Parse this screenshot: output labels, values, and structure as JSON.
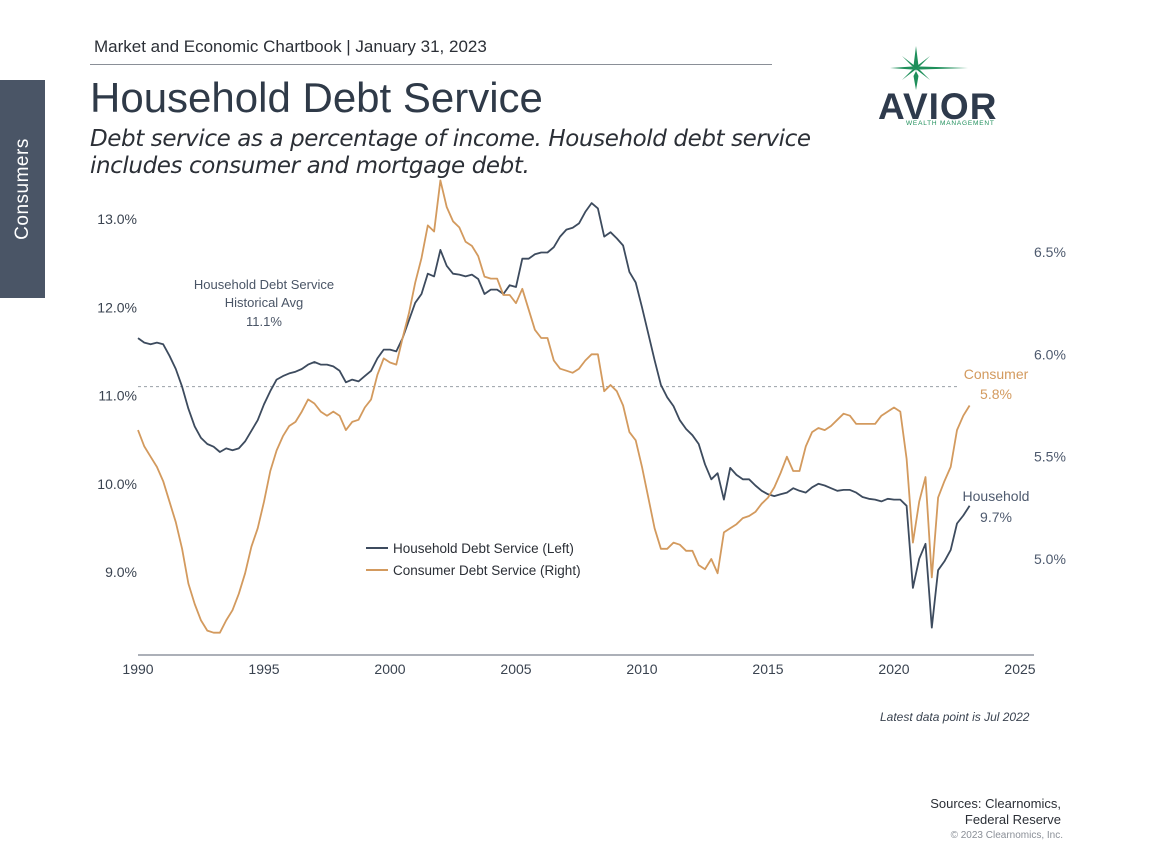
{
  "header": {
    "chartbook": "Market and Economic Chartbook | January 31, 2023",
    "title": "Household Debt Service",
    "subtitle": "Debt service as a percentage of income. Household debt service includes consumer and mortgage debt."
  },
  "sidebar": {
    "label": "Consumers"
  },
  "logo": {
    "word": "AVIOR",
    "sub": "WEALTH MANAGEMENT",
    "icon": "star-icon",
    "star_color": "#1f8f5b"
  },
  "footer": {
    "note": "Latest data point is Jul 2022",
    "sources_line1": "Sources: Clearnomics,",
    "sources_line2": "Federal Reserve",
    "copyright": "© 2023 Clearnomics, Inc."
  },
  "chart_data": {
    "type": "line",
    "x_ticks": [
      "1990",
      "1995",
      "2000",
      "2005",
      "2010",
      "2015",
      "2020",
      "2025"
    ],
    "x_range": [
      1990,
      2025
    ],
    "left_axis": {
      "ticks": [
        "9.0%",
        "10.0%",
        "11.0%",
        "12.0%",
        "13.0%"
      ],
      "tick_values": [
        9,
        10,
        11,
        12,
        13
      ],
      "range": [
        8.05,
        13.25
      ]
    },
    "right_axis": {
      "ticks": [
        "5.0%",
        "5.5%",
        "6.0%",
        "6.5%"
      ],
      "tick_values": [
        5.0,
        5.5,
        6.0,
        6.5
      ],
      "range": [
        4.52,
        6.85
      ]
    },
    "reference_line": {
      "value": 11.1,
      "label_line1": "Household Debt Service",
      "label_line2": "Historical Avg",
      "label_value": "11.1%"
    },
    "colors": {
      "household": "#3d4b5e",
      "consumer": "#d39a5e",
      "axis": "#5a6270",
      "refline": "#9aa0a8"
    },
    "legend": {
      "household": "Household Debt Service (Left)",
      "consumer": "Consumer Debt Service (Right)"
    },
    "end_labels": {
      "consumer_name": "Consumer",
      "consumer_value": "5.8%",
      "household_name": "Household",
      "household_value": "9.7%"
    },
    "series": [
      {
        "name": "Household Debt Service (Left)",
        "axis": "left",
        "points": [
          [
            1990.0,
            11.65
          ],
          [
            1990.25,
            11.6
          ],
          [
            1990.5,
            11.58
          ],
          [
            1990.75,
            11.6
          ],
          [
            1991.0,
            11.58
          ],
          [
            1991.25,
            11.45
          ],
          [
            1991.5,
            11.3
          ],
          [
            1991.75,
            11.1
          ],
          [
            1992.0,
            10.85
          ],
          [
            1992.25,
            10.65
          ],
          [
            1992.5,
            10.52
          ],
          [
            1992.75,
            10.45
          ],
          [
            1993.0,
            10.42
          ],
          [
            1993.25,
            10.36
          ],
          [
            1993.5,
            10.4
          ],
          [
            1993.75,
            10.38
          ],
          [
            1994.0,
            10.4
          ],
          [
            1994.25,
            10.48
          ],
          [
            1994.5,
            10.6
          ],
          [
            1994.75,
            10.72
          ],
          [
            1995.0,
            10.9
          ],
          [
            1995.25,
            11.05
          ],
          [
            1995.5,
            11.18
          ],
          [
            1995.75,
            11.22
          ],
          [
            1996.0,
            11.25
          ],
          [
            1996.25,
            11.27
          ],
          [
            1996.5,
            11.3
          ],
          [
            1996.75,
            11.35
          ],
          [
            1997.0,
            11.38
          ],
          [
            1997.25,
            11.35
          ],
          [
            1997.5,
            11.35
          ],
          [
            1997.75,
            11.33
          ],
          [
            1998.0,
            11.28
          ],
          [
            1998.25,
            11.15
          ],
          [
            1998.5,
            11.18
          ],
          [
            1998.75,
            11.16
          ],
          [
            1999.0,
            11.22
          ],
          [
            1999.25,
            11.28
          ],
          [
            1999.5,
            11.42
          ],
          [
            1999.75,
            11.52
          ],
          [
            2000.0,
            11.52
          ],
          [
            2000.25,
            11.5
          ],
          [
            2000.5,
            11.65
          ],
          [
            2000.75,
            11.85
          ],
          [
            2001.0,
            12.05
          ],
          [
            2001.25,
            12.15
          ],
          [
            2001.5,
            12.38
          ],
          [
            2001.75,
            12.35
          ],
          [
            2002.0,
            12.65
          ],
          [
            2002.25,
            12.47
          ],
          [
            2002.5,
            12.38
          ],
          [
            2002.75,
            12.37
          ],
          [
            2003.0,
            12.35
          ],
          [
            2003.25,
            12.37
          ],
          [
            2003.5,
            12.32
          ],
          [
            2003.75,
            12.15
          ],
          [
            2004.0,
            12.2
          ],
          [
            2004.25,
            12.2
          ],
          [
            2004.5,
            12.15
          ],
          [
            2004.75,
            12.25
          ],
          [
            2005.0,
            12.23
          ],
          [
            2005.25,
            12.55
          ],
          [
            2005.5,
            12.55
          ],
          [
            2005.75,
            12.6
          ],
          [
            2006.0,
            12.62
          ],
          [
            2006.25,
            12.62
          ],
          [
            2006.5,
            12.68
          ],
          [
            2006.75,
            12.8
          ],
          [
            2007.0,
            12.88
          ],
          [
            2007.25,
            12.9
          ],
          [
            2007.5,
            12.95
          ],
          [
            2007.75,
            13.08
          ],
          [
            2008.0,
            13.18
          ],
          [
            2008.25,
            13.12
          ],
          [
            2008.5,
            12.8
          ],
          [
            2008.75,
            12.85
          ],
          [
            2009.0,
            12.78
          ],
          [
            2009.25,
            12.7
          ],
          [
            2009.5,
            12.4
          ],
          [
            2009.75,
            12.28
          ],
          [
            2010.0,
            12.0
          ],
          [
            2010.25,
            11.7
          ],
          [
            2010.5,
            11.4
          ],
          [
            2010.75,
            11.12
          ],
          [
            2011.0,
            10.98
          ],
          [
            2011.25,
            10.88
          ],
          [
            2011.5,
            10.72
          ],
          [
            2011.75,
            10.62
          ],
          [
            2012.0,
            10.55
          ],
          [
            2012.25,
            10.45
          ],
          [
            2012.5,
            10.22
          ],
          [
            2012.75,
            10.05
          ],
          [
            2013.0,
            10.12
          ],
          [
            2013.25,
            9.82
          ],
          [
            2013.5,
            10.18
          ],
          [
            2013.75,
            10.1
          ],
          [
            2014.0,
            10.05
          ],
          [
            2014.25,
            10.05
          ],
          [
            2014.5,
            9.98
          ],
          [
            2014.75,
            9.92
          ],
          [
            2015.0,
            9.88
          ],
          [
            2015.25,
            9.86
          ],
          [
            2015.5,
            9.88
          ],
          [
            2015.75,
            9.9
          ],
          [
            2016.0,
            9.95
          ],
          [
            2016.25,
            9.92
          ],
          [
            2016.5,
            9.9
          ],
          [
            2016.75,
            9.96
          ],
          [
            2017.0,
            10.0
          ],
          [
            2017.25,
            9.98
          ],
          [
            2017.5,
            9.95
          ],
          [
            2017.75,
            9.92
          ],
          [
            2018.0,
            9.93
          ],
          [
            2018.25,
            9.93
          ],
          [
            2018.5,
            9.9
          ],
          [
            2018.75,
            9.85
          ],
          [
            2019.0,
            9.83
          ],
          [
            2019.25,
            9.82
          ],
          [
            2019.5,
            9.8
          ],
          [
            2019.75,
            9.83
          ],
          [
            2020.0,
            9.82
          ],
          [
            2020.25,
            9.82
          ],
          [
            2020.5,
            9.75
          ],
          [
            2020.75,
            8.82
          ],
          [
            2021.0,
            9.15
          ],
          [
            2021.25,
            9.32
          ],
          [
            2021.5,
            8.37
          ],
          [
            2021.75,
            9.02
          ],
          [
            2022.0,
            9.12
          ],
          [
            2022.25,
            9.25
          ],
          [
            2022.5,
            9.55
          ],
          [
            2022.75,
            9.64
          ],
          [
            2023.0,
            9.75
          ]
        ]
      },
      {
        "name": "Consumer Debt Service (Right)",
        "axis": "right",
        "points": [
          [
            1990.0,
            5.63
          ],
          [
            1990.25,
            5.55
          ],
          [
            1990.5,
            5.5
          ],
          [
            1990.75,
            5.45
          ],
          [
            1991.0,
            5.38
          ],
          [
            1991.25,
            5.28
          ],
          [
            1991.5,
            5.18
          ],
          [
            1991.75,
            5.05
          ],
          [
            1992.0,
            4.88
          ],
          [
            1992.25,
            4.78
          ],
          [
            1992.5,
            4.7
          ],
          [
            1992.75,
            4.65
          ],
          [
            1993.0,
            4.64
          ],
          [
            1993.25,
            4.64
          ],
          [
            1993.5,
            4.7
          ],
          [
            1993.75,
            4.75
          ],
          [
            1994.0,
            4.83
          ],
          [
            1994.25,
            4.93
          ],
          [
            1994.5,
            5.06
          ],
          [
            1994.75,
            5.15
          ],
          [
            1995.0,
            5.28
          ],
          [
            1995.25,
            5.43
          ],
          [
            1995.5,
            5.53
          ],
          [
            1995.75,
            5.6
          ],
          [
            1996.0,
            5.65
          ],
          [
            1996.25,
            5.67
          ],
          [
            1996.5,
            5.72
          ],
          [
            1996.75,
            5.78
          ],
          [
            1997.0,
            5.76
          ],
          [
            1997.25,
            5.72
          ],
          [
            1997.5,
            5.7
          ],
          [
            1997.75,
            5.72
          ],
          [
            1998.0,
            5.7
          ],
          [
            1998.25,
            5.63
          ],
          [
            1998.5,
            5.67
          ],
          [
            1998.75,
            5.68
          ],
          [
            1999.0,
            5.74
          ],
          [
            1999.25,
            5.78
          ],
          [
            1999.5,
            5.9
          ],
          [
            1999.75,
            5.98
          ],
          [
            2000.0,
            5.96
          ],
          [
            2000.25,
            5.95
          ],
          [
            2000.5,
            6.08
          ],
          [
            2000.75,
            6.2
          ],
          [
            2001.0,
            6.35
          ],
          [
            2001.25,
            6.47
          ],
          [
            2001.5,
            6.63
          ],
          [
            2001.75,
            6.6
          ],
          [
            2002.0,
            6.85
          ],
          [
            2002.25,
            6.72
          ],
          [
            2002.5,
            6.65
          ],
          [
            2002.75,
            6.62
          ],
          [
            2003.0,
            6.55
          ],
          [
            2003.25,
            6.53
          ],
          [
            2003.5,
            6.48
          ],
          [
            2003.75,
            6.38
          ],
          [
            2004.0,
            6.37
          ],
          [
            2004.25,
            6.37
          ],
          [
            2004.5,
            6.29
          ],
          [
            2004.75,
            6.29
          ],
          [
            2005.0,
            6.25
          ],
          [
            2005.25,
            6.32
          ],
          [
            2005.5,
            6.22
          ],
          [
            2005.75,
            6.12
          ],
          [
            2006.0,
            6.08
          ],
          [
            2006.25,
            6.08
          ],
          [
            2006.5,
            5.97
          ],
          [
            2006.75,
            5.93
          ],
          [
            2007.0,
            5.92
          ],
          [
            2007.25,
            5.91
          ],
          [
            2007.5,
            5.93
          ],
          [
            2007.75,
            5.97
          ],
          [
            2008.0,
            6.0
          ],
          [
            2008.25,
            6.0
          ],
          [
            2008.5,
            5.82
          ],
          [
            2008.75,
            5.85
          ],
          [
            2009.0,
            5.82
          ],
          [
            2009.25,
            5.75
          ],
          [
            2009.5,
            5.62
          ],
          [
            2009.75,
            5.58
          ],
          [
            2010.0,
            5.45
          ],
          [
            2010.25,
            5.3
          ],
          [
            2010.5,
            5.15
          ],
          [
            2010.75,
            5.05
          ],
          [
            2011.0,
            5.05
          ],
          [
            2011.25,
            5.08
          ],
          [
            2011.5,
            5.07
          ],
          [
            2011.75,
            5.04
          ],
          [
            2012.0,
            5.04
          ],
          [
            2012.25,
            4.97
          ],
          [
            2012.5,
            4.95
          ],
          [
            2012.75,
            5.0
          ],
          [
            2013.0,
            4.93
          ],
          [
            2013.25,
            5.13
          ],
          [
            2013.5,
            5.15
          ],
          [
            2013.75,
            5.17
          ],
          [
            2014.0,
            5.2
          ],
          [
            2014.25,
            5.21
          ],
          [
            2014.5,
            5.23
          ],
          [
            2014.75,
            5.27
          ],
          [
            2015.0,
            5.3
          ],
          [
            2015.25,
            5.35
          ],
          [
            2015.5,
            5.42
          ],
          [
            2015.75,
            5.5
          ],
          [
            2016.0,
            5.43
          ],
          [
            2016.25,
            5.43
          ],
          [
            2016.5,
            5.55
          ],
          [
            2016.75,
            5.62
          ],
          [
            2017.0,
            5.64
          ],
          [
            2017.25,
            5.63
          ],
          [
            2017.5,
            5.65
          ],
          [
            2017.75,
            5.68
          ],
          [
            2018.0,
            5.71
          ],
          [
            2018.25,
            5.7
          ],
          [
            2018.5,
            5.66
          ],
          [
            2018.75,
            5.66
          ],
          [
            2019.0,
            5.66
          ],
          [
            2019.25,
            5.66
          ],
          [
            2019.5,
            5.7
          ],
          [
            2019.75,
            5.72
          ],
          [
            2020.0,
            5.74
          ],
          [
            2020.25,
            5.72
          ],
          [
            2020.5,
            5.49
          ],
          [
            2020.75,
            5.08
          ],
          [
            2021.0,
            5.28
          ],
          [
            2021.25,
            5.4
          ],
          [
            2021.5,
            4.91
          ],
          [
            2021.75,
            5.3
          ],
          [
            2022.0,
            5.38
          ],
          [
            2022.25,
            5.45
          ],
          [
            2022.5,
            5.63
          ],
          [
            2022.75,
            5.7
          ],
          [
            2023.0,
            5.75
          ]
        ]
      }
    ]
  }
}
